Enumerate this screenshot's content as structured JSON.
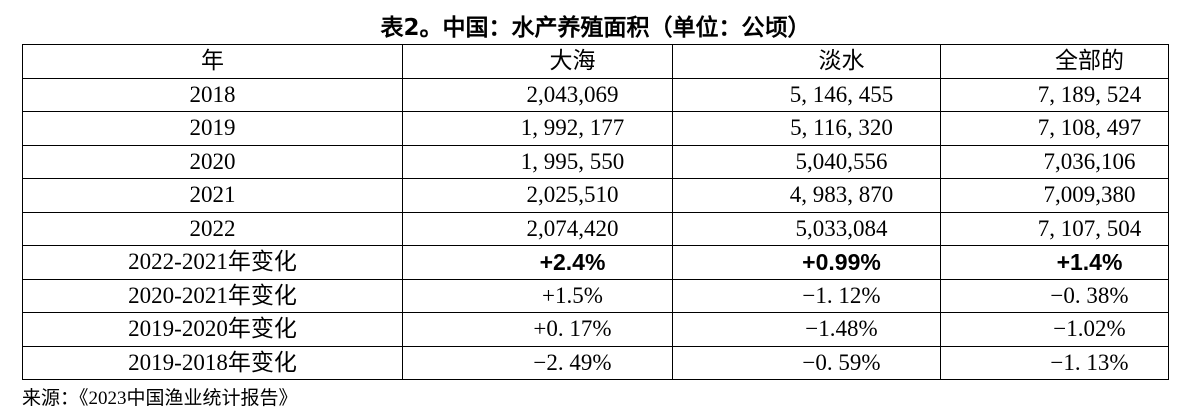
{
  "title": "表2。中国：水产养殖面积（单位：公顷）",
  "table": {
    "header": [
      "年",
      "大海",
      "淡水",
      "全部的"
    ],
    "rows": [
      [
        "2018",
        "2,043,069",
        "5, 146, 455",
        "7, 189, 524"
      ],
      [
        "2019",
        "1, 992, 177",
        "5, 116, 320",
        "7, 108, 497"
      ],
      [
        "2020",
        "1, 995, 550",
        "5,040,556",
        "7,036,106"
      ],
      [
        "2021",
        "2,025,510",
        "4, 983, 870",
        "7,009,380"
      ],
      [
        "2022",
        "2,074,420",
        "5,033,084",
        "7, 107, 504"
      ],
      [
        "2022-2021年变化",
        "+2.4%",
        "+0.99%",
        "+1.4%"
      ],
      [
        "2020-2021年变化",
        "+1.5%",
        "−1. 12%",
        "−0. 38%"
      ],
      [
        "2019-2020年变化",
        "+0. 17%",
        "−1.48%",
        "−1.02%"
      ],
      [
        "2019-2018年变化",
        "−2. 49%",
        "−0. 59%",
        "−1. 13%"
      ]
    ]
  },
  "source": "来源：《2023中国渔业统计报告》"
}
